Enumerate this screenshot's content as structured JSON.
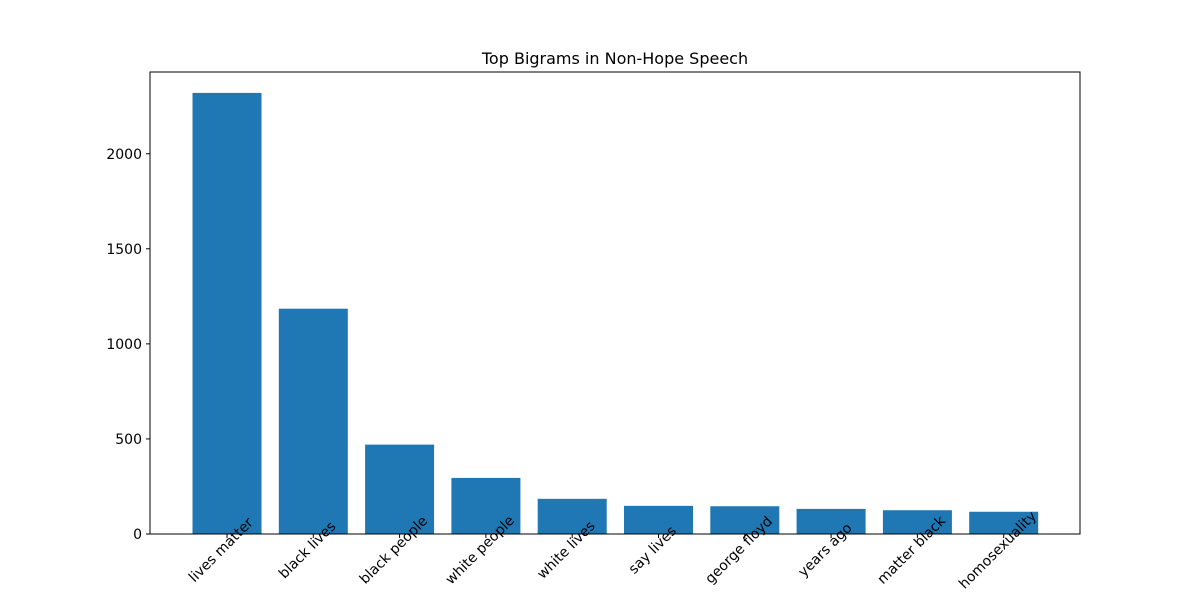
{
  "chart_data": {
    "type": "bar",
    "title": "Top Bigrams in Non-Hope Speech",
    "xlabel": "",
    "ylabel": "",
    "categories": [
      "lives matter",
      "black lives",
      "black people",
      "white people",
      "white lives",
      "say lives",
      "george floyd",
      "years ago",
      "matter black",
      "homosexuality"
    ],
    "values": [
      2320,
      1185,
      470,
      295,
      185,
      148,
      146,
      132,
      125,
      117
    ],
    "ylim": [
      0,
      2430
    ],
    "yticks": [
      0,
      500,
      1000,
      1500,
      2000
    ],
    "bar_color": "#1f77b4",
    "grid": false,
    "x_tick_rotation": 45
  }
}
